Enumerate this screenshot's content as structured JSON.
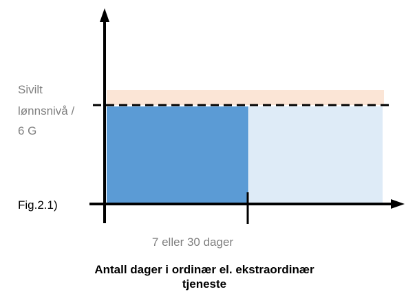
{
  "y_label": [
    "Sivilt",
    "lønnsnivå /",
    "6 G"
  ],
  "figure_label": "Fig.2.1)",
  "x_tick_label": "7 eller 30 dager",
  "x_axis_title": [
    "Antall dager i ordinær el. ekstraordinær",
    "tjeneste"
  ]
}
